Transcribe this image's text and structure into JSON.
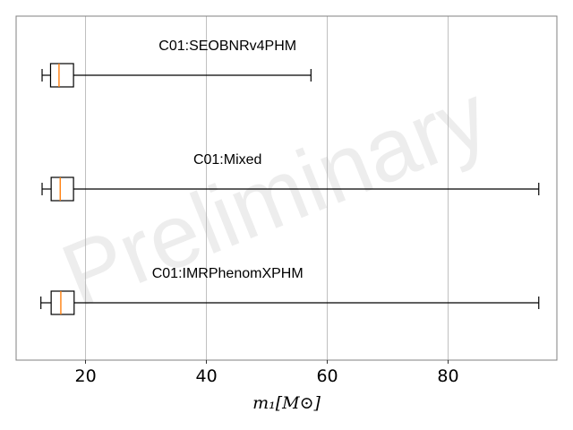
{
  "watermark": "Preliminary",
  "chart_data": {
    "type": "box",
    "orientation": "horizontal",
    "xlabel": "m₁[M⊙]",
    "xlim": [
      8.5,
      98
    ],
    "xticks": [
      20,
      40,
      60,
      80
    ],
    "grid": "x",
    "series": [
      {
        "name": "C01:SEOBNRv4PHM",
        "whisker_low": 12.8,
        "q1": 14.2,
        "median": 15.6,
        "q3": 18.0,
        "whisker_high": 57.3
      },
      {
        "name": "C01:Mixed",
        "whisker_low": 12.8,
        "q1": 14.3,
        "median": 15.8,
        "q3": 18.0,
        "whisker_high": 95.0
      },
      {
        "name": "C01:IMRPhenomXPHM",
        "whisker_low": 12.6,
        "q1": 14.3,
        "median": 15.9,
        "q3": 18.1,
        "whisker_high": 95.0
      }
    ],
    "colors": {
      "box": "#000000",
      "median": "#ff7f0e",
      "grid": "#b0b0b0",
      "frame": "#808080"
    }
  }
}
